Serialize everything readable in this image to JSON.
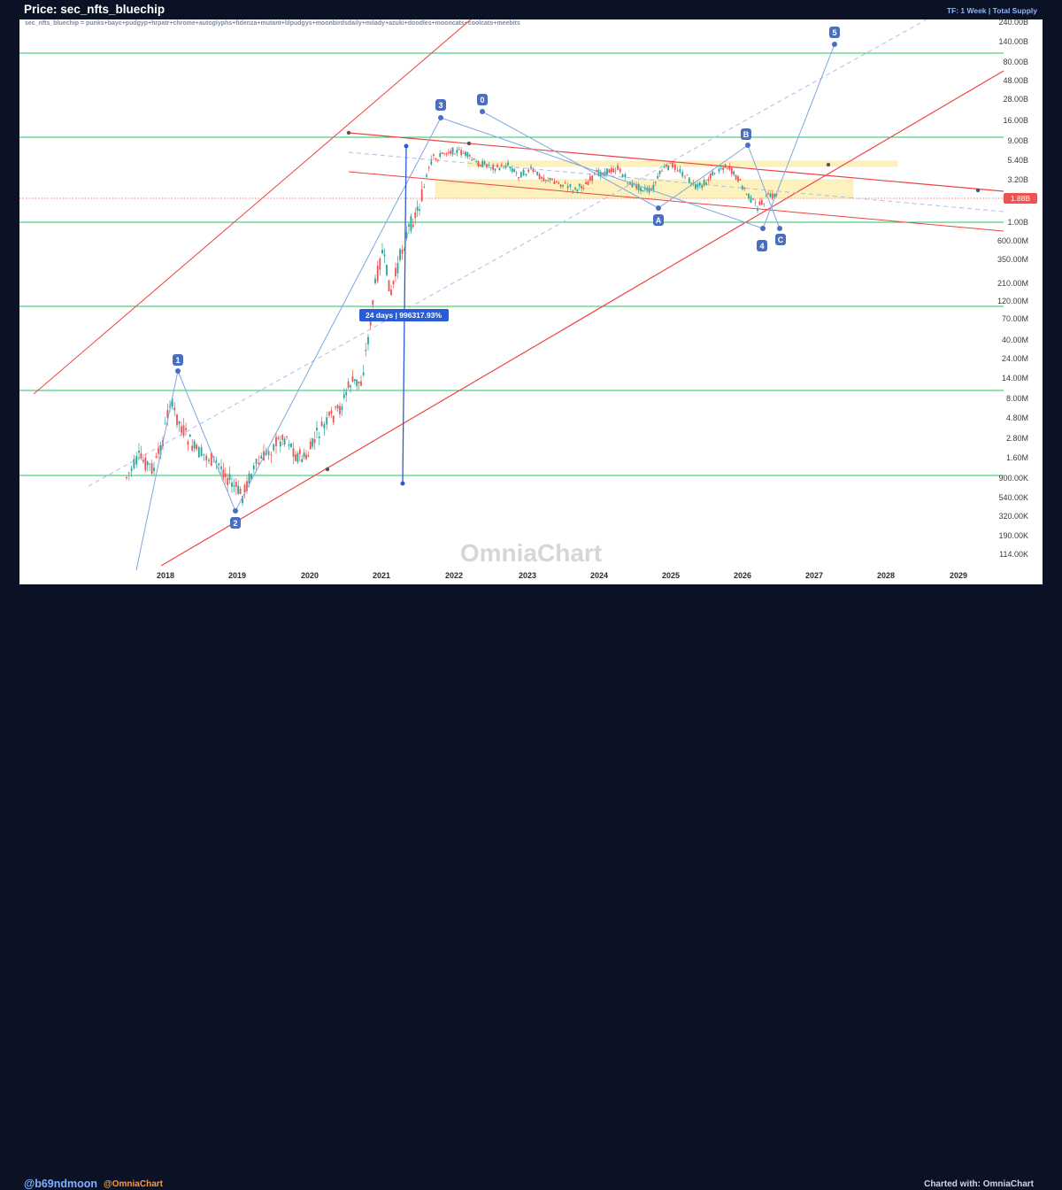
{
  "header": {
    "title": "Price: sec_nfts_bluechip",
    "timeframe": "TF: 1 Week | Total Supply"
  },
  "footer": {
    "author": "@b69ndmoon",
    "brand": "@OmniaChart",
    "charted_with": "Charted with: OmniaChart"
  },
  "chart_data": {
    "type": "line",
    "subtitle": "sec_nfts_bluechip = punks+bayc+pudgyp+hrpatr+chrome+autoglyphs+fidenza+mutant+lilpudgys+moonbirdsdaily+milady+azuki+doodles+mooncats+coolcats+meebits",
    "watermark": "OmniaChart",
    "y_scale": "log",
    "y_ticks": [
      "240.00B",
      "140.00B",
      "80.00B",
      "48.00B",
      "28.00B",
      "16.00B",
      "9.00B",
      "5.40B",
      "3.20B",
      "1.00B",
      "600.00M",
      "350.00M",
      "210.00M",
      "120.00M",
      "70.00M",
      "40.00M",
      "24.00M",
      "14.00M",
      "8.00M",
      "4.80M",
      "2.80M",
      "1.60M",
      "900.00K",
      "540.00K",
      "320.00K",
      "190.00K",
      "114.00K"
    ],
    "x_ticks": [
      "2018",
      "2019",
      "2020",
      "2021",
      "2022",
      "2023",
      "2024",
      "2025",
      "2026",
      "2027",
      "2028",
      "2029"
    ],
    "current_price": "1.88B",
    "measure_label": "24 days | 996317.93%",
    "wave_labels": [
      "1",
      "2",
      "3",
      "4",
      "5",
      "0",
      "A",
      "B",
      "C"
    ],
    "colors": {
      "up_candle": "#26a69a",
      "down_candle": "#ef5350",
      "channel": "#ef4444",
      "wave": "#7ea6e0",
      "horizontal_levels": "#22c55e",
      "zone": "#fde68a",
      "price_tag": "#ef5350"
    }
  }
}
